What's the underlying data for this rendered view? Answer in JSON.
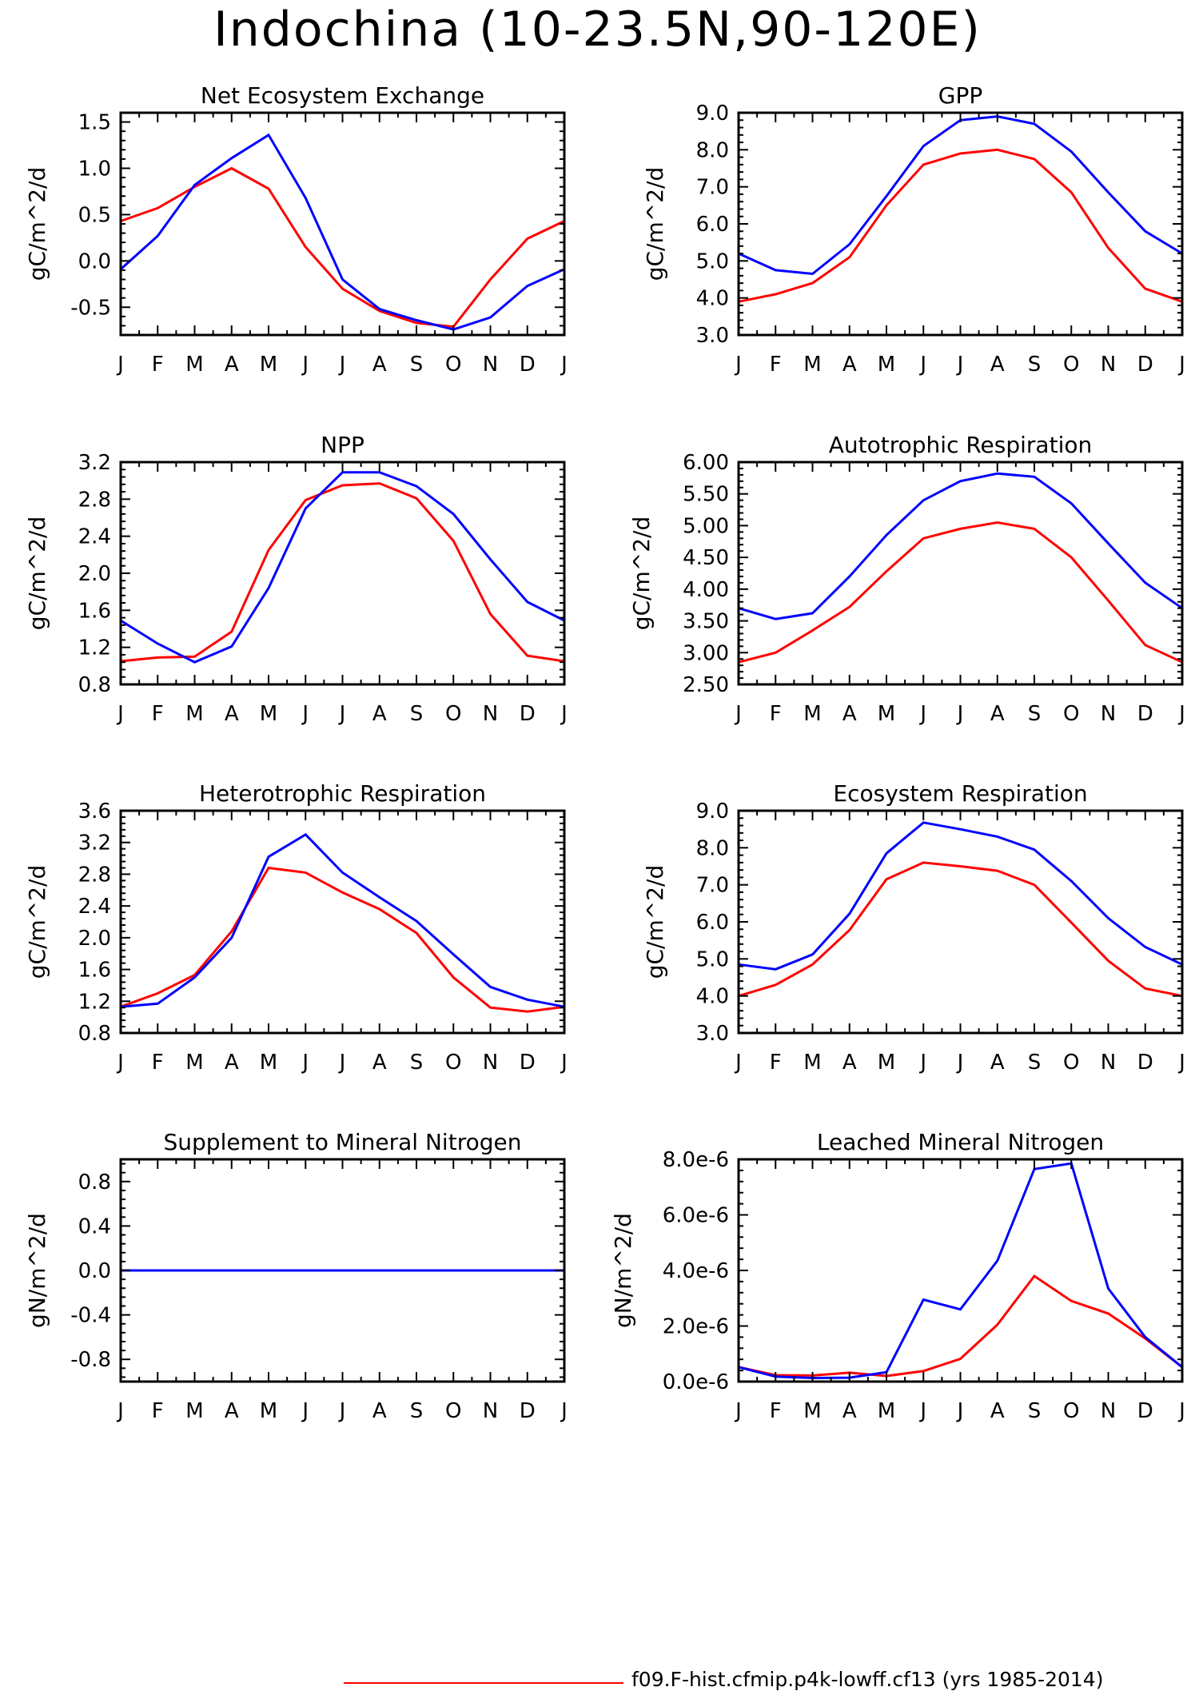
{
  "page": {
    "title": "Indochina (10-23.5N,90-120E)",
    "footer": {
      "label": "f09.F-hist.cfmip.p4k-lowff.cf13 (yrs 1985-2014)",
      "color": "#ff0000"
    }
  },
  "colors": {
    "red": "#ff0000",
    "blue": "#0000ff"
  },
  "chart_data": [
    {
      "type": "line",
      "title": "Net Ecosystem Exchange",
      "ylabel": "gC/m^2/d",
      "xlabel": "",
      "categories": [
        "J",
        "F",
        "M",
        "A",
        "M",
        "J",
        "J",
        "A",
        "S",
        "O",
        "N",
        "D",
        "J"
      ],
      "ylim": [
        -0.8,
        1.6
      ],
      "yticks": [
        -0.5,
        0.0,
        0.5,
        1.0,
        1.5
      ],
      "ytick_labels": [
        "-0.5",
        "0.0",
        "0.5",
        "1.0",
        "1.5"
      ],
      "series": [
        {
          "color": "#ff0000",
          "values": [
            0.43,
            0.57,
            0.8,
            1.0,
            0.78,
            0.15,
            -0.3,
            -0.54,
            -0.67,
            -0.71,
            -0.2,
            0.24,
            0.43
          ]
        },
        {
          "color": "#0000ff",
          "values": [
            -0.09,
            0.27,
            0.82,
            1.11,
            1.36,
            0.68,
            -0.2,
            -0.52,
            -0.64,
            -0.74,
            -0.61,
            -0.27,
            -0.09
          ]
        }
      ]
    },
    {
      "type": "line",
      "title": "GPP",
      "ylabel": "gC/m^2/d",
      "xlabel": "",
      "categories": [
        "J",
        "F",
        "M",
        "A",
        "M",
        "J",
        "J",
        "A",
        "S",
        "O",
        "N",
        "D",
        "J"
      ],
      "ylim": [
        3.0,
        9.0
      ],
      "yticks": [
        3.0,
        4.0,
        5.0,
        6.0,
        7.0,
        8.0,
        9.0
      ],
      "ytick_labels": [
        "3.0",
        "4.0",
        "5.0",
        "6.0",
        "7.0",
        "8.0",
        "9.0"
      ],
      "series": [
        {
          "color": "#ff0000",
          "values": [
            3.9,
            4.1,
            4.4,
            5.1,
            6.5,
            7.6,
            7.9,
            8.0,
            7.75,
            6.85,
            5.35,
            4.25,
            3.9
          ]
        },
        {
          "color": "#0000ff",
          "values": [
            5.2,
            4.75,
            4.65,
            5.45,
            6.75,
            8.1,
            8.8,
            8.9,
            8.7,
            7.95,
            6.85,
            5.8,
            5.2
          ]
        }
      ]
    },
    {
      "type": "line",
      "title": "NPP",
      "ylabel": "gC/m^2/d",
      "xlabel": "",
      "categories": [
        "J",
        "F",
        "M",
        "A",
        "M",
        "J",
        "J",
        "A",
        "S",
        "O",
        "N",
        "D",
        "J"
      ],
      "ylim": [
        0.8,
        3.2
      ],
      "yticks": [
        0.8,
        1.2,
        1.6,
        2.0,
        2.4,
        2.8,
        3.2
      ],
      "ytick_labels": [
        "0.8",
        "1.2",
        "1.6",
        "2.0",
        "2.4",
        "2.8",
        "3.2"
      ],
      "series": [
        {
          "color": "#ff0000",
          "values": [
            1.05,
            1.09,
            1.1,
            1.37,
            2.25,
            2.79,
            2.95,
            2.97,
            2.81,
            2.35,
            1.56,
            1.11,
            1.05
          ]
        },
        {
          "color": "#0000ff",
          "values": [
            1.49,
            1.24,
            1.04,
            1.21,
            1.84,
            2.7,
            3.09,
            3.09,
            2.94,
            2.64,
            2.15,
            1.69,
            1.49
          ]
        }
      ]
    },
    {
      "type": "line",
      "title": "Autotrophic Respiration",
      "ylabel": "gC/m^2/d",
      "xlabel": "",
      "categories": [
        "J",
        "F",
        "M",
        "A",
        "M",
        "J",
        "J",
        "A",
        "S",
        "O",
        "N",
        "D",
        "J"
      ],
      "ylim": [
        2.5,
        6.0
      ],
      "yticks": [
        2.5,
        3.0,
        3.5,
        4.0,
        4.5,
        5.0,
        5.5,
        6.0
      ],
      "ytick_labels": [
        "2.50",
        "3.00",
        "3.50",
        "4.00",
        "4.50",
        "5.00",
        "5.50",
        "6.00"
      ],
      "series": [
        {
          "color": "#ff0000",
          "values": [
            2.85,
            3.0,
            3.35,
            3.72,
            4.28,
            4.8,
            4.95,
            5.05,
            4.95,
            4.5,
            3.82,
            3.12,
            2.85
          ]
        },
        {
          "color": "#0000ff",
          "values": [
            3.7,
            3.53,
            3.62,
            4.2,
            4.85,
            5.4,
            5.7,
            5.82,
            5.77,
            5.35,
            4.72,
            4.1,
            3.7
          ]
        }
      ]
    },
    {
      "type": "line",
      "title": "Heterotrophic Respiration",
      "ylabel": "gC/m^2/d",
      "xlabel": "",
      "categories": [
        "J",
        "F",
        "M",
        "A",
        "M",
        "J",
        "J",
        "A",
        "S",
        "O",
        "N",
        "D",
        "J"
      ],
      "ylim": [
        0.8,
        3.6
      ],
      "yticks": [
        0.8,
        1.2,
        1.6,
        2.0,
        2.4,
        2.8,
        3.2,
        3.6
      ],
      "ytick_labels": [
        "0.8",
        "1.2",
        "1.6",
        "2.0",
        "2.4",
        "2.8",
        "3.2",
        "3.6"
      ],
      "series": [
        {
          "color": "#ff0000",
          "values": [
            1.13,
            1.3,
            1.53,
            2.08,
            2.88,
            2.82,
            2.57,
            2.36,
            2.06,
            1.5,
            1.12,
            1.07,
            1.13
          ]
        },
        {
          "color": "#0000ff",
          "values": [
            1.13,
            1.17,
            1.5,
            2.0,
            3.02,
            3.3,
            2.82,
            2.51,
            2.21,
            1.79,
            1.38,
            1.22,
            1.13
          ]
        }
      ]
    },
    {
      "type": "line",
      "title": "Ecosystem Respiration",
      "ylabel": "gC/m^2/d",
      "xlabel": "",
      "categories": [
        "J",
        "F",
        "M",
        "A",
        "M",
        "J",
        "J",
        "A",
        "S",
        "O",
        "N",
        "D",
        "J"
      ],
      "ylim": [
        3.0,
        9.0
      ],
      "yticks": [
        3.0,
        4.0,
        5.0,
        6.0,
        7.0,
        8.0,
        9.0
      ],
      "ytick_labels": [
        "3.0",
        "4.0",
        "5.0",
        "6.0",
        "7.0",
        "8.0",
        "9.0"
      ],
      "series": [
        {
          "color": "#ff0000",
          "values": [
            4.0,
            4.3,
            4.85,
            5.78,
            7.15,
            7.6,
            7.5,
            7.38,
            7.0,
            5.98,
            4.95,
            4.2,
            4.0
          ]
        },
        {
          "color": "#0000ff",
          "values": [
            4.85,
            4.72,
            5.12,
            6.22,
            7.85,
            8.68,
            8.5,
            8.3,
            7.95,
            7.1,
            6.1,
            5.32,
            4.85
          ]
        }
      ]
    },
    {
      "type": "line",
      "title": "Supplement to Mineral Nitrogen",
      "ylabel": "gN/m^2/d",
      "xlabel": "",
      "categories": [
        "J",
        "F",
        "M",
        "A",
        "M",
        "J",
        "J",
        "A",
        "S",
        "O",
        "N",
        "D",
        "J"
      ],
      "ylim": [
        -1.0,
        1.0
      ],
      "yticks": [
        -0.8,
        -0.4,
        0.0,
        0.4,
        0.8
      ],
      "ytick_labels": [
        "-0.8",
        "-0.4",
        "0.0",
        "0.4",
        "0.8"
      ],
      "series": [
        {
          "color": "#ff0000",
          "values": [
            0,
            0,
            0,
            0,
            0,
            0,
            0,
            0,
            0,
            0,
            0,
            0,
            0
          ]
        },
        {
          "color": "#0000ff",
          "values": [
            0,
            0,
            0,
            0,
            0,
            0,
            0,
            0,
            0,
            0,
            0,
            0,
            0
          ]
        }
      ]
    },
    {
      "type": "line",
      "title": "Leached Mineral Nitrogen",
      "ylabel": "gN/m^2/d",
      "xlabel": "",
      "categories": [
        "J",
        "F",
        "M",
        "A",
        "M",
        "J",
        "J",
        "A",
        "S",
        "O",
        "N",
        "D",
        "J"
      ],
      "ylim": [
        0.0,
        8e-06
      ],
      "yticks": [
        0.0,
        2e-06,
        4e-06,
        6e-06,
        8e-06
      ],
      "ytick_labels": [
        "0.0e-6",
        "2.0e-6",
        "4.0e-6",
        "6.0e-6",
        "8.0e-6"
      ],
      "series": [
        {
          "color": "#ff0000",
          "values": [
            5.2e-07,
            2.3e-07,
            2.2e-07,
            3.2e-07,
            2e-07,
            3.8e-07,
            8.2e-07,
            2.05e-06,
            3.8e-06,
            2.9e-06,
            2.45e-06,
            1.55e-06,
            5.2e-07
          ]
        },
        {
          "color": "#0000ff",
          "values": [
            5.2e-07,
            1.8e-07,
            1.3e-07,
            1.4e-07,
            3.4e-07,
            2.95e-06,
            2.6e-06,
            4.35e-06,
            7.65e-06,
            7.85e-06,
            3.35e-06,
            1.6e-06,
            5.2e-07
          ]
        }
      ]
    }
  ]
}
